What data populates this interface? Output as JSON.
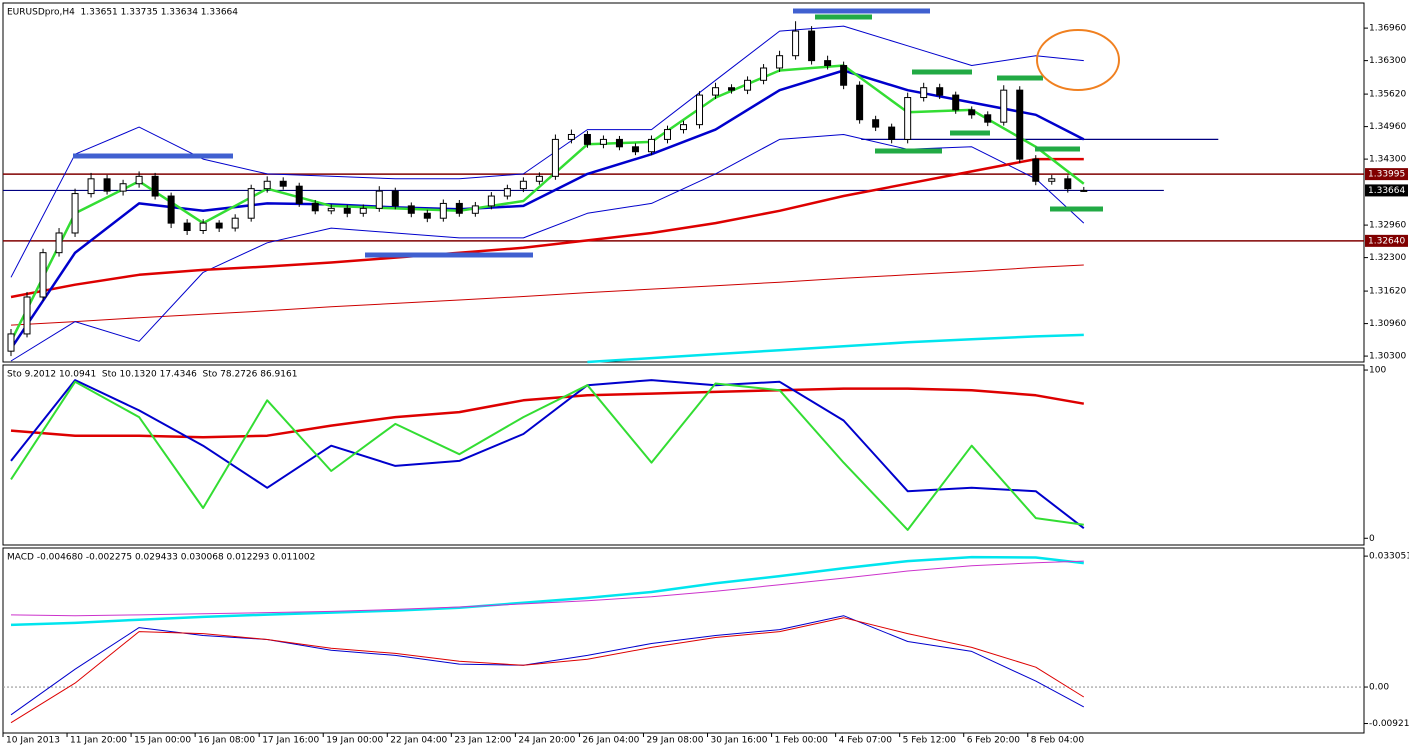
{
  "chart_data": [
    {
      "type": "candlestick",
      "title": "EURUSDpro,H4  1.33651 1.33735 1.33634 1.33664",
      "xlim": [
        0,
        85
      ],
      "ylim": [
        1.3018,
        1.3747
      ],
      "yticks": [
        {
          "value": 1.3696,
          "label": "1.36960"
        },
        {
          "value": 1.363,
          "label": "1.36300"
        },
        {
          "value": 1.3562,
          "label": "1.35620"
        },
        {
          "value": 1.3496,
          "label": "1.34960"
        },
        {
          "value": 1.343,
          "label": "1.34300"
        },
        {
          "value": 1.3296,
          "label": "1.32960"
        },
        {
          "value": 1.323,
          "label": "1.32300"
        },
        {
          "value": 1.3162,
          "label": "1.31620"
        },
        {
          "value": 1.3096,
          "label": "1.30960"
        },
        {
          "value": 1.303,
          "label": "1.30300"
        }
      ],
      "hlines": [
        {
          "value": 1.33995,
          "label": "1.33995",
          "color": "#800000"
        },
        {
          "value": 1.3264,
          "label": "1.32640",
          "color": "#800000"
        },
        {
          "value": 1.33664,
          "label": "1.33664",
          "color": "#000080",
          "label_color": "#000000",
          "x": [
            0,
            72.5
          ]
        },
        {
          "value": 1.347,
          "color": "#000080",
          "x": [
            53.6,
            75.9
          ]
        }
      ],
      "candles": [
        [
          1.304,
          1.3085,
          1.303,
          1.3075
        ],
        [
          1.3075,
          1.316,
          1.3068,
          1.315
        ],
        [
          1.315,
          1.3248,
          1.3142,
          1.324
        ],
        [
          1.324,
          1.329,
          1.3232,
          1.328
        ],
        [
          1.328,
          1.337,
          1.3272,
          1.336
        ],
        [
          1.336,
          1.3402,
          1.3352,
          1.339
        ],
        [
          1.339,
          1.3398,
          1.3358,
          1.3365
        ],
        [
          1.3365,
          1.3388,
          1.3356,
          1.338
        ],
        [
          1.338,
          1.3405,
          1.3372,
          1.3395
        ],
        [
          1.3395,
          1.3402,
          1.3348,
          1.3355
        ],
        [
          1.3355,
          1.3362,
          1.329,
          1.33
        ],
        [
          1.33,
          1.3308,
          1.3276,
          1.3285
        ],
        [
          1.3285,
          1.3308,
          1.3278,
          1.33
        ],
        [
          1.33,
          1.3306,
          1.3282,
          1.329
        ],
        [
          1.329,
          1.3318,
          1.3283,
          1.331
        ],
        [
          1.331,
          1.3378,
          1.3303,
          1.337
        ],
        [
          1.337,
          1.3395,
          1.3362,
          1.3385
        ],
        [
          1.3385,
          1.3393,
          1.3368,
          1.3375
        ],
        [
          1.3375,
          1.3382,
          1.3333,
          1.334
        ],
        [
          1.334,
          1.3347,
          1.3318,
          1.3325
        ],
        [
          1.3325,
          1.3338,
          1.3318,
          1.333
        ],
        [
          1.333,
          1.3337,
          1.3312,
          1.332
        ],
        [
          1.332,
          1.3338,
          1.3313,
          1.333
        ],
        [
          1.333,
          1.3375,
          1.3323,
          1.3365
        ],
        [
          1.3365,
          1.3372,
          1.3328,
          1.3335
        ],
        [
          1.3335,
          1.3342,
          1.3312,
          1.332
        ],
        [
          1.332,
          1.3327,
          1.3302,
          1.331
        ],
        [
          1.331,
          1.3348,
          1.3303,
          1.334
        ],
        [
          1.334,
          1.3347,
          1.3313,
          1.332
        ],
        [
          1.332,
          1.3343,
          1.3313,
          1.3335
        ],
        [
          1.3335,
          1.3363,
          1.3328,
          1.3355
        ],
        [
          1.3355,
          1.3378,
          1.3348,
          1.337
        ],
        [
          1.337,
          1.3393,
          1.3363,
          1.3385
        ],
        [
          1.3385,
          1.3403,
          1.3378,
          1.3395
        ],
        [
          1.3395,
          1.348,
          1.3388,
          1.347
        ],
        [
          1.347,
          1.349,
          1.3462,
          1.348
        ],
        [
          1.348,
          1.3487,
          1.3453,
          1.346
        ],
        [
          1.346,
          1.3478,
          1.3452,
          1.347
        ],
        [
          1.347,
          1.3477,
          1.3448,
          1.3455
        ],
        [
          1.3455,
          1.3462,
          1.3438,
          1.3445
        ],
        [
          1.3445,
          1.3478,
          1.3438,
          1.347
        ],
        [
          1.347,
          1.3498,
          1.3462,
          1.349
        ],
        [
          1.349,
          1.3508,
          1.3482,
          1.35
        ],
        [
          1.35,
          1.3568,
          1.3492,
          1.356
        ],
        [
          1.356,
          1.3585,
          1.3552,
          1.3575
        ],
        [
          1.3575,
          1.3582,
          1.3563,
          1.357
        ],
        [
          1.357,
          1.3598,
          1.3562,
          1.359
        ],
        [
          1.359,
          1.3623,
          1.3582,
          1.3615
        ],
        [
          1.3615,
          1.365,
          1.3607,
          1.364
        ],
        [
          1.364,
          1.371,
          1.3632,
          1.369
        ],
        [
          1.369,
          1.37,
          1.3622,
          1.363
        ],
        [
          1.363,
          1.364,
          1.3612,
          1.362
        ],
        [
          1.362,
          1.3628,
          1.3572,
          1.358
        ],
        [
          1.358,
          1.3588,
          1.3502,
          1.351
        ],
        [
          1.351,
          1.3518,
          1.3487,
          1.3495
        ],
        [
          1.3495,
          1.3502,
          1.3462,
          1.347
        ],
        [
          1.347,
          1.3565,
          1.3462,
          1.3555
        ],
        [
          1.3555,
          1.3585,
          1.3547,
          1.3575
        ],
        [
          1.3575,
          1.3583,
          1.3552,
          1.356
        ],
        [
          1.356,
          1.3567,
          1.3522,
          1.353
        ],
        [
          1.353,
          1.3537,
          1.3512,
          1.352
        ],
        [
          1.352,
          1.3527,
          1.3497,
          1.3505
        ],
        [
          1.3505,
          1.358,
          1.3498,
          1.357
        ],
        [
          1.357,
          1.3578,
          1.3422,
          1.343
        ],
        [
          1.343,
          1.3438,
          1.3377,
          1.3385
        ],
        [
          1.3385,
          1.3398,
          1.3378,
          1.339
        ],
        [
          1.339,
          1.3397,
          1.3362,
          1.337
        ],
        [
          1.33651,
          1.33735,
          1.33634,
          1.33664
        ]
      ],
      "x": [
        0,
        4,
        8,
        12,
        16,
        20,
        24,
        28,
        32,
        36,
        40,
        44,
        48,
        52,
        56,
        60,
        64,
        67
      ],
      "series": [
        {
          "color": "#cc0000",
          "width": 1,
          "values": [
            1.3093,
            1.31,
            1.3108,
            1.3115,
            1.3122,
            1.313,
            1.3137,
            1.3144,
            1.3151,
            1.3159,
            1.3166,
            1.3173,
            1.318,
            1.3188,
            1.3195,
            1.3202,
            1.321,
            1.3215
          ]
        },
        {
          "color": "#00e5ee",
          "width": 2.5,
          "values": [
            null,
            null,
            null,
            null,
            null,
            null,
            null,
            null,
            null,
            1.3018,
            1.3026,
            1.3034,
            1.3042,
            1.305,
            1.3058,
            1.3064,
            1.307,
            1.3073
          ]
        },
        {
          "color": "#0000cc",
          "width": 1,
          "values": [
            1.319,
            1.344,
            1.3495,
            1.343,
            1.34,
            1.3395,
            1.339,
            1.339,
            1.34,
            1.349,
            1.349,
            1.359,
            1.369,
            1.37,
            1.366,
            1.362,
            1.364,
            1.363
          ]
        },
        {
          "color": "#0000cc",
          "width": 1,
          "values": [
            1.302,
            1.31,
            1.306,
            1.32,
            1.326,
            1.329,
            1.328,
            1.327,
            1.327,
            1.332,
            1.334,
            1.34,
            1.347,
            1.348,
            1.345,
            1.3455,
            1.339,
            1.33
          ]
        },
        {
          "color": "#dd0000",
          "width": 2.5,
          "values": [
            1.315,
            1.3175,
            1.3195,
            1.3205,
            1.3212,
            1.322,
            1.323,
            1.324,
            1.325,
            1.3265,
            1.328,
            1.33,
            1.3325,
            1.3355,
            1.338,
            1.3405,
            1.343,
            1.343
          ]
        },
        {
          "color": "#0000cc",
          "width": 2.5,
          "values": [
            1.3045,
            1.324,
            1.334,
            1.3325,
            1.334,
            1.3338,
            1.3332,
            1.3328,
            1.3335,
            1.34,
            1.344,
            1.349,
            1.357,
            1.361,
            1.357,
            1.3545,
            1.352,
            1.347
          ]
        },
        {
          "color": "#33dd33",
          "width": 2.5,
          "values": [
            1.306,
            1.332,
            1.3385,
            1.33,
            1.337,
            1.3335,
            1.333,
            1.3325,
            1.3345,
            1.346,
            1.3465,
            1.3555,
            1.361,
            1.362,
            1.3525,
            1.353,
            1.3455,
            1.338
          ]
        }
      ]
    },
    {
      "type": "line",
      "title": "Sto 9.2012 10.0941  Sto 10.1320 17.4346  Sto 78.2726 86.9161",
      "xlim": [
        0,
        85
      ],
      "ylim": [
        -4,
        103
      ],
      "yticks": [
        100,
        0
      ],
      "x": [
        0,
        4,
        8,
        12,
        16,
        20,
        24,
        28,
        32,
        36,
        40,
        44,
        48,
        52,
        56,
        60,
        64,
        67
      ],
      "series": [
        {
          "color": "#dd0000",
          "width": 2.5,
          "values": [
            64,
            61,
            61,
            60,
            61,
            67,
            72,
            75,
            82,
            85,
            86,
            87,
            88,
            89,
            89,
            88,
            85,
            80
          ]
        },
        {
          "color": "#0000cc",
          "width": 2,
          "values": [
            46,
            94,
            76,
            55,
            30,
            55,
            43,
            46,
            62,
            91,
            94,
            91,
            93,
            70,
            28,
            30,
            28,
            6
          ]
        },
        {
          "color": "#33dd33",
          "width": 2,
          "values": [
            35,
            93,
            72,
            18,
            82,
            40,
            68,
            50,
            72,
            91,
            45,
            92,
            88,
            45,
            5,
            55,
            12,
            8
          ]
        }
      ]
    },
    {
      "type": "line",
      "title": "MACD -0.004680 -0.002275 0.029433 0.030068 0.012293 0.011002",
      "xlim": [
        0,
        85
      ],
      "ylim": [
        -0.0116,
        0.0351
      ],
      "yticks": [
        0.033051,
        {
          "value": 0,
          "label": "0.00"
        },
        -0.00921
      ],
      "hlines": [
        {
          "value": 0,
          "color": "#999999",
          "dash": true
        }
      ],
      "xticks": [
        {
          "value": 0,
          "label": "10 Jan 2013"
        },
        {
          "value": 4,
          "label": "11 Jan 20:00"
        },
        {
          "value": 8,
          "label": "15 Jan 00:00"
        },
        {
          "value": 12,
          "label": "16 Jan 08:00"
        },
        {
          "value": 16,
          "label": "17 Jan 16:00"
        },
        {
          "value": 20,
          "label": "19 Jan 00:00"
        },
        {
          "value": 24,
          "label": "22 Jan 04:00"
        },
        {
          "value": 28,
          "label": "23 Jan 12:00"
        },
        {
          "value": 32,
          "label": "24 Jan 20:00"
        },
        {
          "value": 36,
          "label": "26 Jan 04:00"
        },
        {
          "value": 40,
          "label": "29 Jan 08:00"
        },
        {
          "value": 44,
          "label": "30 Jan 16:00"
        },
        {
          "value": 48,
          "label": "1 Feb 00:00"
        },
        {
          "value": 52,
          "label": "4 Feb 07:00"
        },
        {
          "value": 56,
          "label": "5 Feb 12:00"
        },
        {
          "value": 60,
          "label": "6 Feb 20:00"
        },
        {
          "value": 64,
          "label": "8 Feb 04:00"
        }
      ],
      "x": [
        0,
        4,
        8,
        12,
        16,
        20,
        24,
        28,
        32,
        36,
        40,
        44,
        48,
        52,
        56,
        60,
        64,
        67
      ],
      "series": [
        {
          "color": "#00e5ee",
          "width": 2.5,
          "values": [
            0.0157,
            0.0162,
            0.017,
            0.0177,
            0.0183,
            0.0188,
            0.0193,
            0.02,
            0.0213,
            0.0225,
            0.024,
            0.0262,
            0.028,
            0.03,
            0.0318,
            0.0328,
            0.0327,
            0.0313
          ]
        },
        {
          "color": "#cc33cc",
          "width": 1,
          "values": [
            0.0182,
            0.018,
            0.0182,
            0.0185,
            0.0188,
            0.0191,
            0.0196,
            0.0202,
            0.021,
            0.0218,
            0.0228,
            0.0242,
            0.0258,
            0.0275,
            0.0293,
            0.0306,
            0.0314,
            0.0318
          ]
        },
        {
          "color": "#0000cc",
          "width": 1,
          "values": [
            -0.007,
            0.0045,
            0.015,
            0.013,
            0.012,
            0.0093,
            0.008,
            0.0058,
            0.0055,
            0.008,
            0.011,
            0.013,
            0.0145,
            0.018,
            0.0115,
            0.009,
            0.0015,
            -0.005
          ]
        },
        {
          "color": "#dd0000",
          "width": 1,
          "values": [
            -0.009,
            0.001,
            0.014,
            0.0135,
            0.012,
            0.0098,
            0.0085,
            0.0065,
            0.0055,
            0.007,
            0.01,
            0.0125,
            0.014,
            0.0175,
            0.0135,
            0.01,
            0.005,
            -0.0025
          ]
        }
      ]
    }
  ]
}
